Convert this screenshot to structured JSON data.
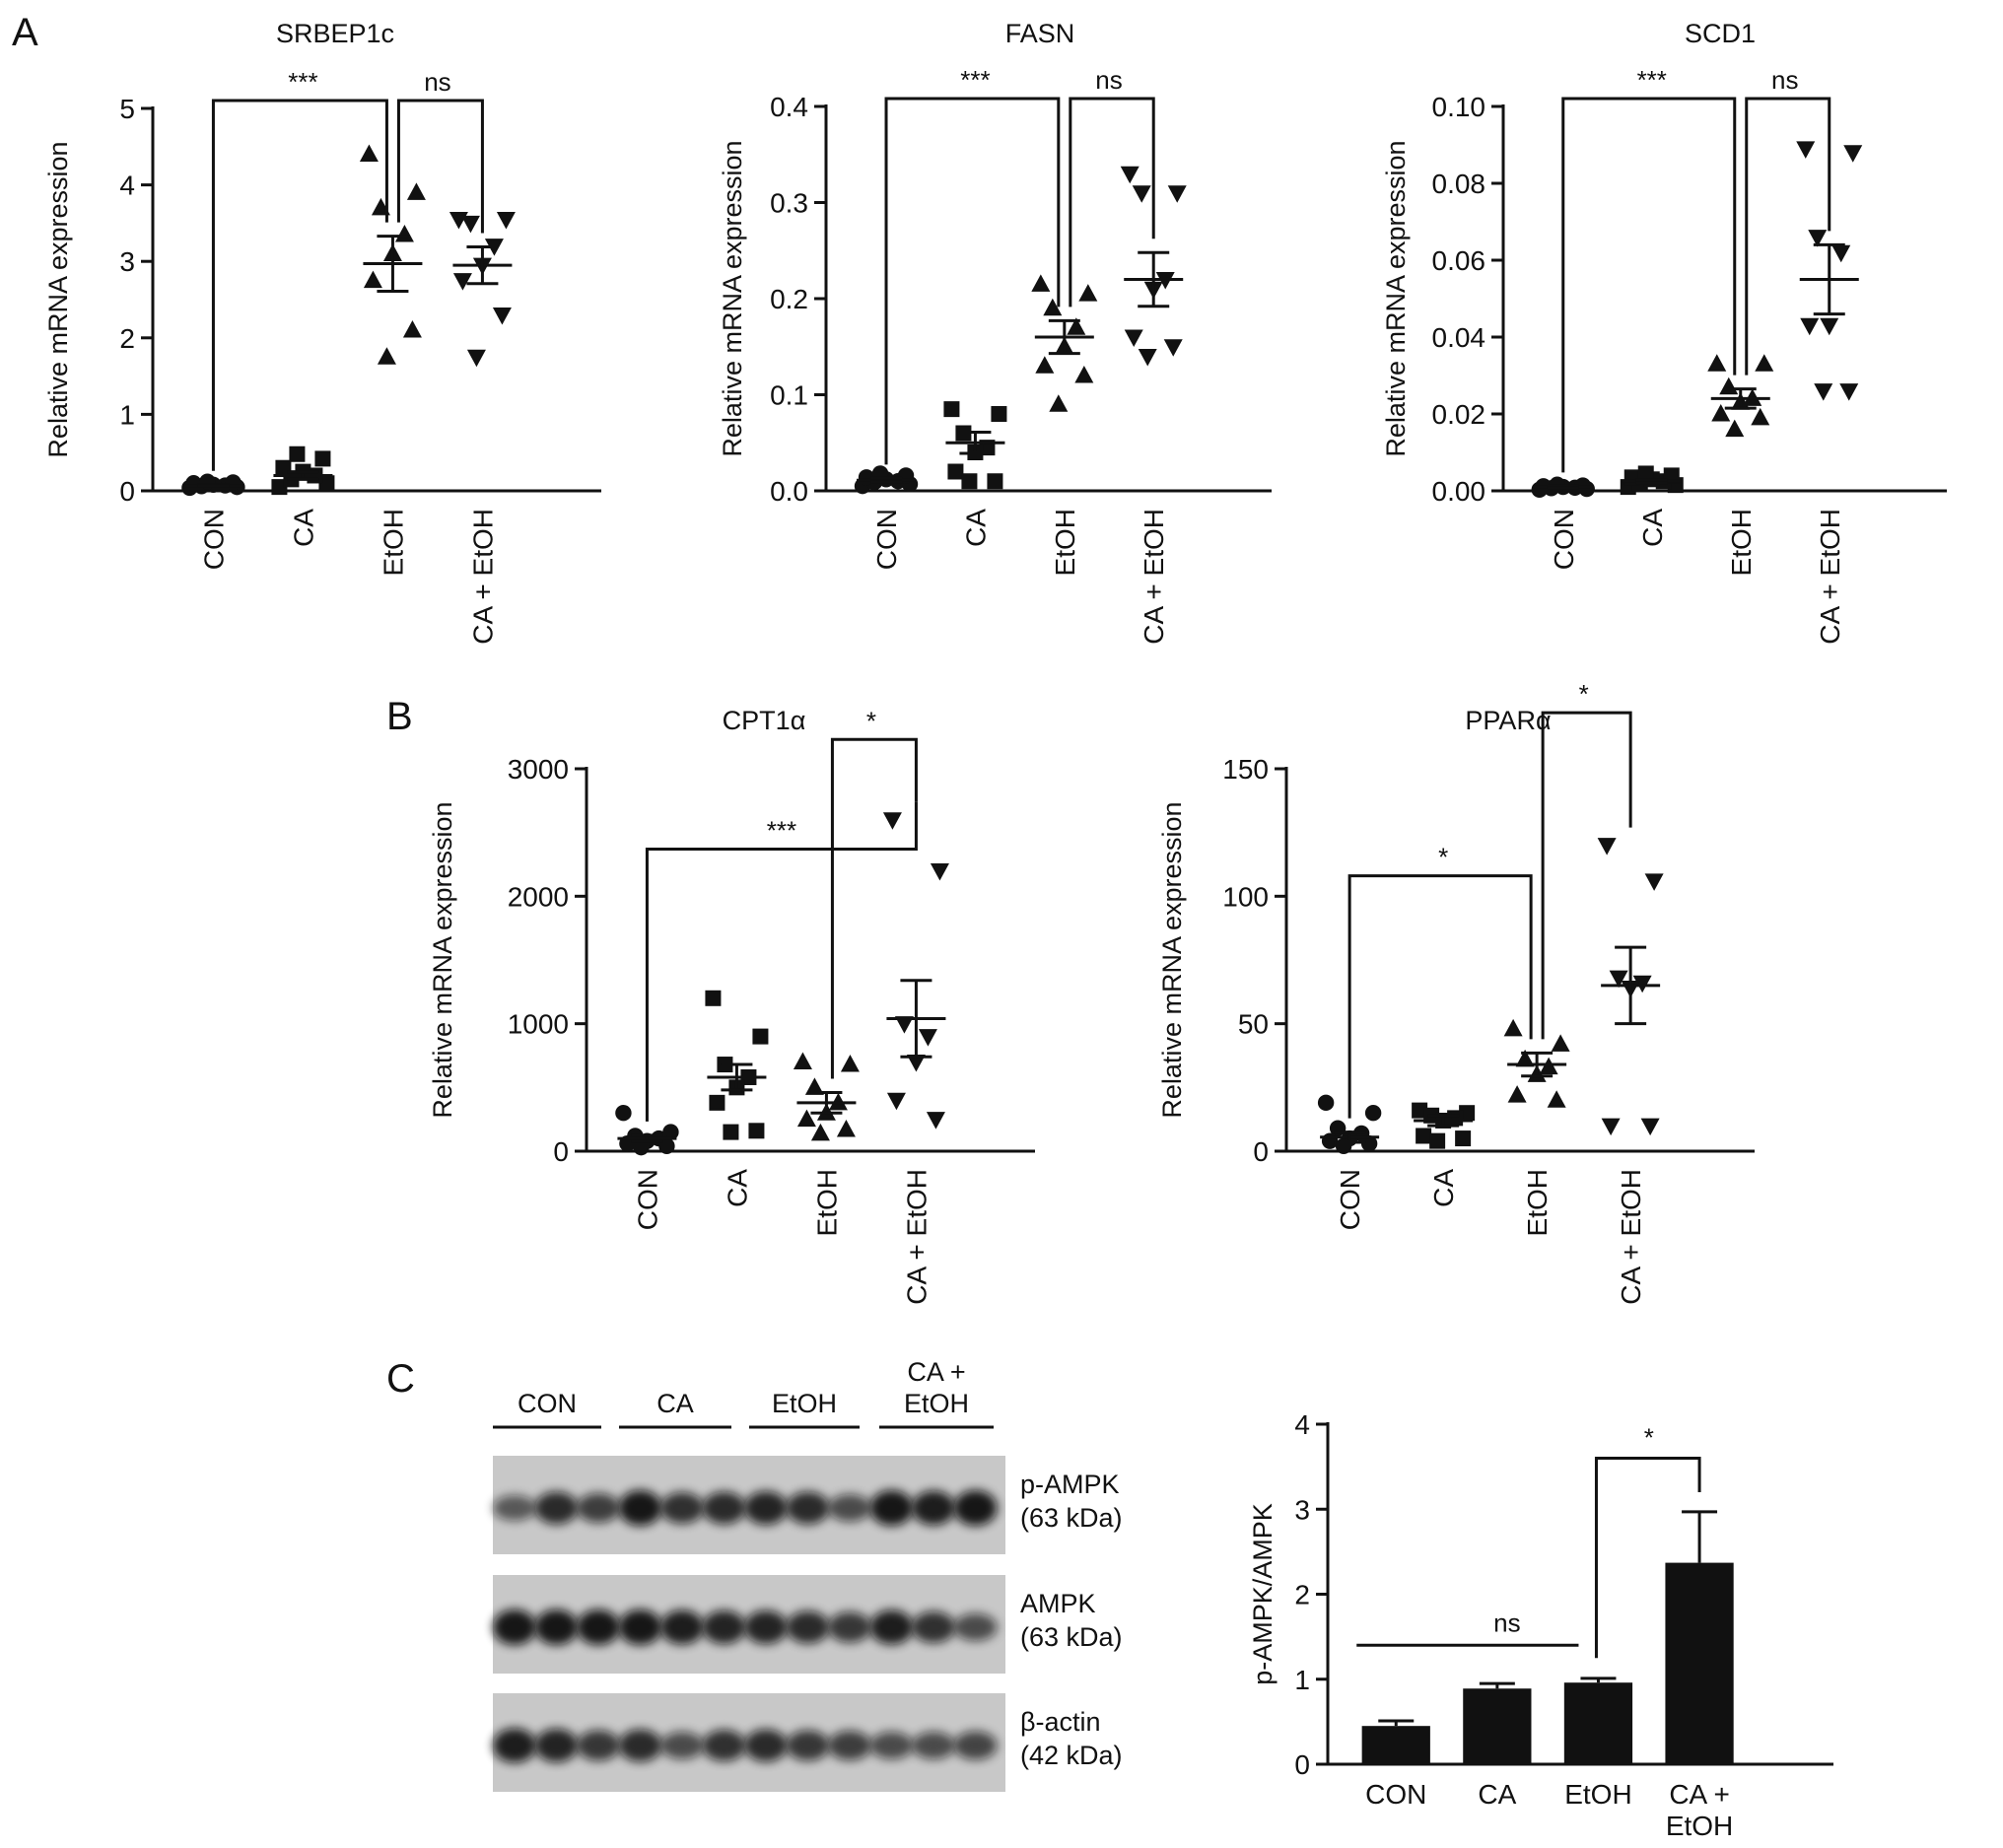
{
  "panels": {
    "a": "A",
    "b": "B",
    "c": "C"
  },
  "chart_data": [
    {
      "id": "srbep1c",
      "panel": "A",
      "type": "scatter",
      "title": "SRBEP1c",
      "ylabel": "Relative mRNA expression",
      "categories": [
        "CON",
        "CA",
        "EtOH",
        "CA + EtOH"
      ],
      "markers": [
        "circle",
        "square",
        "triangle-up",
        "triangle-down"
      ],
      "ylim": [
        0,
        5
      ],
      "yticks": [
        0,
        1,
        2,
        3,
        4,
        5
      ],
      "ytick_labels": [
        "0",
        "1",
        "2",
        "3",
        "4",
        "5"
      ],
      "points": [
        [
          0.04,
          0.05,
          0.06,
          0.07,
          0.08,
          0.1,
          0.11,
          0.12
        ],
        [
          0.05,
          0.1,
          0.15,
          0.2,
          0.25,
          0.3,
          0.42,
          0.48
        ],
        [
          4.4,
          3.9,
          3.7,
          3.35,
          3.1,
          2.75,
          2.1,
          1.75
        ],
        [
          3.55,
          3.55,
          3.5,
          3.2,
          2.95,
          2.75,
          2.3,
          1.75
        ]
      ],
      "mean": [
        0.07,
        0.2,
        2.97,
        2.95
      ],
      "sem": [
        0.01,
        0.05,
        0.36,
        0.24
      ],
      "brackets": [
        {
          "from": 0,
          "to": 2,
          "label": "***"
        },
        {
          "from": 2,
          "to": 3,
          "label": "ns"
        }
      ]
    },
    {
      "id": "fasn",
      "panel": "A",
      "type": "scatter",
      "title": "FASN",
      "ylabel": "Relative mRNA expression",
      "categories": [
        "CON",
        "CA",
        "EtOH",
        "CA + EtOH"
      ],
      "markers": [
        "circle",
        "square",
        "triangle-up",
        "triangle-down"
      ],
      "ylim": [
        0,
        0.4
      ],
      "yticks": [
        0,
        0.1,
        0.2,
        0.3,
        0.4
      ],
      "ytick_labels": [
        "0.0",
        "0.1",
        "0.2",
        "0.3",
        "0.4"
      ],
      "points": [
        [
          0.005,
          0.007,
          0.009,
          0.01,
          0.012,
          0.014,
          0.016,
          0.018
        ],
        [
          0.085,
          0.08,
          0.06,
          0.045,
          0.04,
          0.02,
          0.01,
          0.01
        ],
        [
          0.215,
          0.205,
          0.19,
          0.17,
          0.15,
          0.13,
          0.12,
          0.09
        ],
        [
          0.33,
          0.31,
          0.31,
          0.22,
          0.21,
          0.16,
          0.15,
          0.14
        ]
      ],
      "mean": [
        0.011,
        0.05,
        0.16,
        0.22
      ],
      "sem": [
        0.002,
        0.011,
        0.017,
        0.028
      ],
      "brackets": [
        {
          "from": 0,
          "to": 2,
          "label": "***"
        },
        {
          "from": 2,
          "to": 3,
          "label": "ns"
        }
      ]
    },
    {
      "id": "scd1",
      "panel": "A",
      "type": "scatter",
      "title": "SCD1",
      "ylabel": "Relative mRNA expression",
      "categories": [
        "CON",
        "CA",
        "EtOH",
        "CA + EtOH"
      ],
      "markers": [
        "circle",
        "square",
        "triangle-up",
        "triangle-down"
      ],
      "ylim": [
        0,
        0.1
      ],
      "yticks": [
        0,
        0.02,
        0.04,
        0.06,
        0.08,
        0.1
      ],
      "ytick_labels": [
        "0.00",
        "0.02",
        "0.04",
        "0.06",
        "0.08",
        "0.10"
      ],
      "points": [
        [
          0.0003,
          0.0005,
          0.0007,
          0.0008,
          0.001,
          0.0012,
          0.0014,
          0.0016
        ],
        [
          0.001,
          0.0015,
          0.002,
          0.0025,
          0.003,
          0.0035,
          0.004,
          0.0045
        ],
        [
          0.033,
          0.033,
          0.027,
          0.024,
          0.023,
          0.02,
          0.019,
          0.016
        ],
        [
          0.089,
          0.088,
          0.066,
          0.062,
          0.043,
          0.043,
          0.026,
          0.026
        ]
      ],
      "mean": [
        0.001,
        0.0025,
        0.024,
        0.055
      ],
      "sem": [
        0.0002,
        0.0004,
        0.0025,
        0.009
      ],
      "brackets": [
        {
          "from": 0,
          "to": 2,
          "label": "***"
        },
        {
          "from": 2,
          "to": 3,
          "label": "ns"
        }
      ]
    },
    {
      "id": "cpt1a",
      "panel": "B",
      "type": "scatter",
      "title": "CPT1α",
      "ylabel": "Relative mRNA expression",
      "categories": [
        "CON",
        "CA",
        "EtOH",
        "CA + EtOH"
      ],
      "markers": [
        "circle",
        "square",
        "triangle-up",
        "triangle-down"
      ],
      "ylim": [
        0,
        3000
      ],
      "yticks": [
        0,
        1000,
        2000,
        3000
      ],
      "ytick_labels": [
        "0",
        "1000",
        "2000",
        "3000"
      ],
      "points": [
        [
          300,
          150,
          120,
          100,
          80,
          60,
          40,
          30
        ],
        [
          1200,
          900,
          680,
          580,
          500,
          380,
          160,
          150
        ],
        [
          700,
          680,
          500,
          380,
          300,
          250,
          170,
          140
        ],
        [
          2600,
          2200,
          1000,
          900,
          700,
          400,
          250
        ]
      ],
      "mean": [
        100,
        580,
        380,
        1040
      ],
      "sem": [
        25,
        100,
        80,
        300
      ],
      "brackets": [
        {
          "from": 0,
          "to": 3,
          "label": "***"
        },
        {
          "from": 2,
          "to": 3,
          "label": "*"
        }
      ]
    },
    {
      "id": "ppara",
      "panel": "B",
      "type": "scatter",
      "title": "PPARα",
      "ylabel": "Relative mRNA expression",
      "categories": [
        "CON",
        "CA",
        "EtOH",
        "CA + EtOH"
      ],
      "markers": [
        "circle",
        "square",
        "triangle-up",
        "triangle-down"
      ],
      "ylim": [
        0,
        150
      ],
      "yticks": [
        0,
        50,
        100,
        150
      ],
      "ytick_labels": [
        "0",
        "50",
        "100",
        "150"
      ],
      "points": [
        [
          19,
          15,
          9,
          7,
          5,
          4,
          3,
          2
        ],
        [
          16,
          15,
          14,
          13,
          12,
          6,
          5,
          4
        ],
        [
          48,
          42,
          36,
          33,
          30,
          22,
          20
        ],
        [
          120,
          106,
          68,
          66,
          64,
          10,
          10
        ]
      ],
      "mean": [
        5.5,
        12,
        34,
        65
      ],
      "sem": [
        2,
        2,
        4.5,
        15
      ],
      "brackets": [
        {
          "from": 0,
          "to": 2,
          "label": "*"
        },
        {
          "from": 2,
          "to": 3,
          "label": "*"
        }
      ]
    },
    {
      "id": "pampk",
      "panel": "C",
      "type": "bar",
      "title": "",
      "ylabel": "p-AMPK/AMPK",
      "categories": [
        "CON",
        "CA",
        "EtOH",
        "CA + EtOH"
      ],
      "category_lines": [
        [
          "CON"
        ],
        [
          "CA"
        ],
        [
          "EtOH"
        ],
        [
          "CA +",
          "EtOH"
        ]
      ],
      "values": [
        0.45,
        0.89,
        0.96,
        2.37
      ],
      "errors": [
        0.06,
        0.06,
        0.05,
        0.6
      ],
      "ylim": [
        0,
        4
      ],
      "yticks": [
        0,
        1,
        2,
        3,
        4
      ],
      "ytick_labels": [
        "0",
        "1",
        "2",
        "3",
        "4"
      ],
      "brackets": [
        {
          "type": "line",
          "from": 0,
          "to": 2,
          "label": "ns"
        },
        {
          "type": "bracket",
          "from": 2,
          "to": 3,
          "label": "*"
        }
      ]
    }
  ],
  "western_blot": {
    "lane_groups": [
      {
        "lines": [
          "CON"
        ]
      },
      {
        "lines": [
          "CA"
        ]
      },
      {
        "lines": [
          "EtOH"
        ]
      },
      {
        "lines": [
          "CA +",
          "EtOH"
        ]
      }
    ],
    "rows": [
      {
        "label": [
          "p-AMPK",
          "(63 kDa)"
        ],
        "intensity": [
          0.5,
          0.85,
          0.7,
          1.0,
          0.8,
          0.85,
          0.9,
          0.85,
          0.6,
          1.0,
          0.95,
          1.0
        ]
      },
      {
        "label": [
          "AMPK",
          "(63 kDa)"
        ],
        "intensity": [
          1.0,
          1.0,
          1.0,
          1.0,
          0.95,
          0.9,
          0.9,
          0.85,
          0.75,
          0.95,
          0.8,
          0.6
        ]
      },
      {
        "label": [
          "β-actin",
          "(42 kDa)"
        ],
        "intensity": [
          0.95,
          0.9,
          0.75,
          0.85,
          0.6,
          0.8,
          0.85,
          0.75,
          0.7,
          0.6,
          0.6,
          0.65
        ]
      }
    ]
  }
}
